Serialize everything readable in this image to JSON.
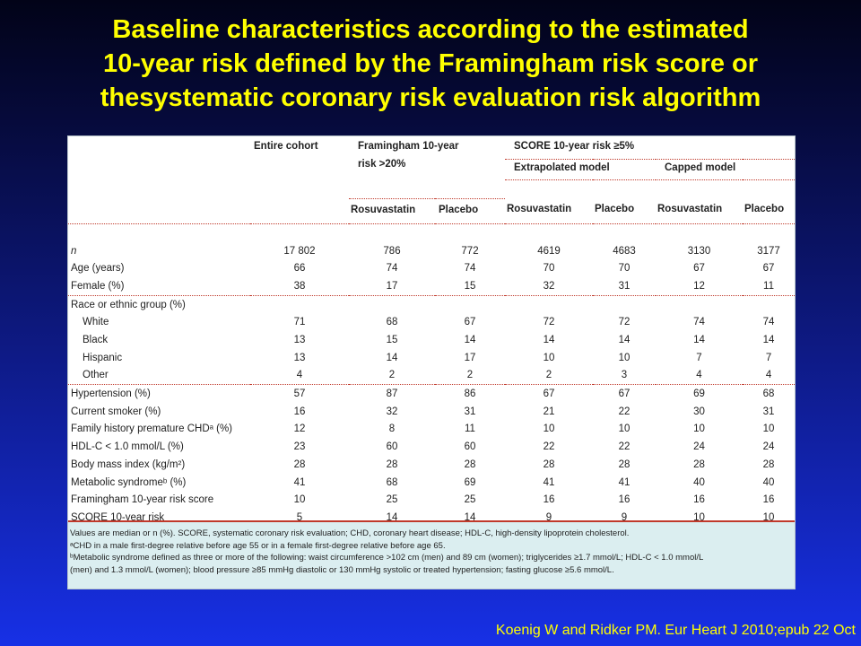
{
  "title": {
    "line1": "Baseline characteristics according to the estimated",
    "line2": "10-year risk defined by the Framingham risk score or",
    "line3": "thesystematic coronary risk evaluation risk algorithm"
  },
  "table": {
    "header": {
      "entire_cohort": "Entire cohort",
      "framingham_group_line1": "Framingham 10-year",
      "framingham_group_line2": "risk >20%",
      "score_group": "SCORE 10-year risk ≥5%",
      "extrapolated_model": "Extrapolated model",
      "capped_model": "Capped model",
      "rosuvastatin": "Rosuvastatin",
      "placebo": "Placebo"
    },
    "rows": [
      {
        "label": "n",
        "values": [
          "17 802",
          "786",
          "772",
          "4619",
          "4683",
          "3130",
          "3177"
        ]
      },
      {
        "label": "Age (years)",
        "values": [
          "66",
          "74",
          "74",
          "70",
          "70",
          "67",
          "67"
        ]
      },
      {
        "label": "Female (%)",
        "values": [
          "38",
          "17",
          "15",
          "32",
          "31",
          "12",
          "11"
        ]
      },
      {
        "label": "Race or ethnic group (%)",
        "values": [
          "",
          "",
          "",
          "",
          "",
          "",
          ""
        ]
      },
      {
        "label": "White",
        "values": [
          "71",
          "68",
          "67",
          "72",
          "72",
          "74",
          "74"
        ]
      },
      {
        "label": "Black",
        "values": [
          "13",
          "15",
          "14",
          "14",
          "14",
          "14",
          "14"
        ]
      },
      {
        "label": "Hispanic",
        "values": [
          "13",
          "14",
          "17",
          "10",
          "10",
          "7",
          "7"
        ]
      },
      {
        "label": "Other",
        "values": [
          "4",
          "2",
          "2",
          "2",
          "3",
          "4",
          "4"
        ]
      },
      {
        "label": "Hypertension (%)",
        "values": [
          "57",
          "87",
          "86",
          "67",
          "67",
          "69",
          "68"
        ]
      },
      {
        "label": "Current smoker (%)",
        "values": [
          "16",
          "32",
          "31",
          "21",
          "22",
          "30",
          "31"
        ]
      },
      {
        "label": "Family history premature CHDᵃ (%)",
        "values": [
          "12",
          "8",
          "11",
          "10",
          "10",
          "10",
          "10"
        ]
      },
      {
        "label": "HDL-C < 1.0 mmol/L (%)",
        "values": [
          "23",
          "60",
          "60",
          "22",
          "22",
          "24",
          "24"
        ]
      },
      {
        "label": "Body mass index (kg/m²)",
        "values": [
          "28",
          "28",
          "28",
          "28",
          "28",
          "28",
          "28"
        ]
      },
      {
        "label": "Metabolic syndromeᵇ (%)",
        "values": [
          "41",
          "68",
          "69",
          "41",
          "41",
          "40",
          "40"
        ]
      },
      {
        "label": "Framingham 10-year risk score",
        "values": [
          "10",
          "25",
          "25",
          "16",
          "16",
          "16",
          "16"
        ]
      },
      {
        "label": "SCORE 10-year risk",
        "values": [
          "5",
          "14",
          "14",
          "9",
          "9",
          "10",
          "10"
        ]
      }
    ]
  },
  "footnotes": {
    "line1": "Values are median or n (%). SCORE, systematic coronary risk evaluation; CHD, coronary heart disease; HDL-C, high-density lipoprotein cholesterol.",
    "line2": "ᵃCHD in a male first-degree relative before age 55 or in a female first-degree relative before age 65.",
    "line3": "ᵇMetabolic syndrome defined as three or more of the following: waist circumference >102 cm (men) and 89 cm (women); triglycerides ≥1.7 mmol/L; HDL-C < 1.0 mmol/L",
    "line4": "(men) and 1.3 mmol/L (women); blood pressure ≥85 mmHg diastolic or 130 mmHg systolic or treated hypertension; fasting glucose ≥5.6 mmol/L."
  },
  "citation": "Koenig W and Ridker PM.   Eur Heart J 2010;epub 22 Oct"
}
